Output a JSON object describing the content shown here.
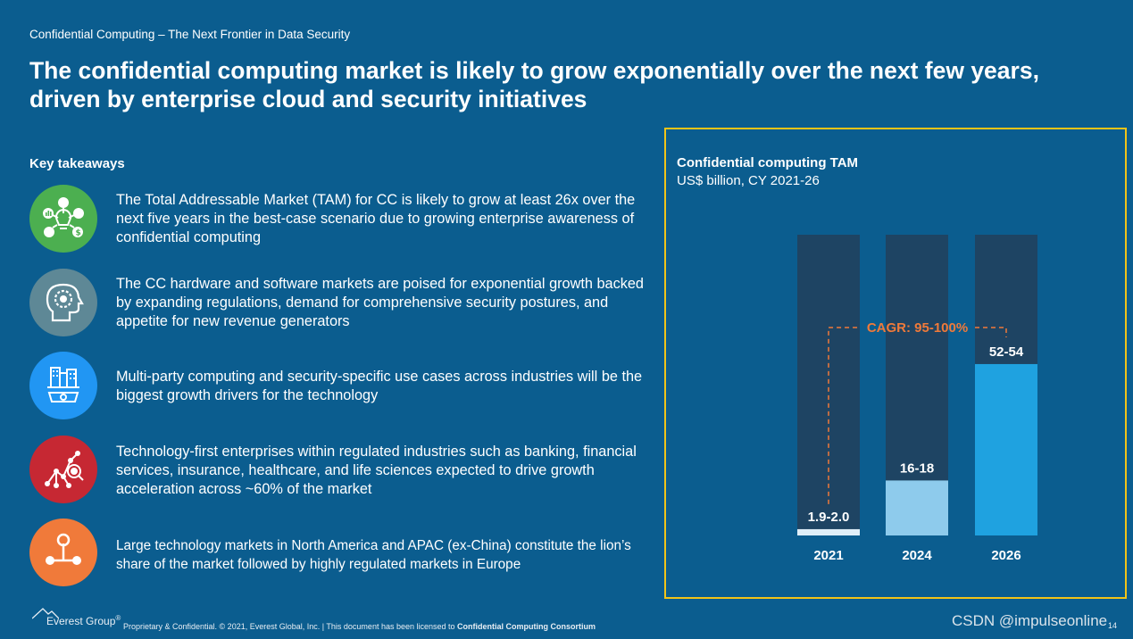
{
  "subtitle": "Confidential Computing – The Next Frontier in Data Security",
  "headline": "The confidential computing market is likely to grow exponentially over the next few years, driven by enterprise cloud and security initiatives",
  "key_takeaways": {
    "heading": "Key takeaways",
    "items": [
      {
        "icon": "growth-bulb-icon",
        "color": "#4caf50",
        "text": "The Total Addressable Market (TAM) for CC is likely to grow at least 26x over the next five years in the best-case scenario due to growing enterprise awareness of confidential computing"
      },
      {
        "icon": "brain-gear-icon",
        "color": "#5e8896",
        "text": "The CC hardware and software markets are poised for exponential growth backed by expanding regulations, demand for comprehensive security postures, and appetite for new revenue generators"
      },
      {
        "icon": "industry-gear-icon",
        "color": "#2196f3",
        "text": "Multi-party computing and security-specific use cases across industries will be the biggest growth drivers for the technology"
      },
      {
        "icon": "network-search-icon",
        "color": "#c62833",
        "text": "Technology-first enterprises within regulated industries such as banking, financial services, insurance, healthcare, and life sciences expected to drive growth acceleration across ~60% of the market"
      },
      {
        "icon": "hierarchy-network-icon",
        "color": "#f07a3a",
        "text": "Large technology markets in North America and APAC (ex-China) constitute the lion’s share of the market followed by highly regulated markets in Europe"
      }
    ]
  },
  "chart_panel": {
    "title": "Confidential computing TAM",
    "subtitle": "US$ billion, CY 2021-26"
  },
  "chart_data": {
    "type": "bar",
    "title": "Confidential computing TAM",
    "subtitle": "US$ billion, CY 2021-26",
    "categories": [
      "2021",
      "2024",
      "2026"
    ],
    "values": [
      1.95,
      17,
      53
    ],
    "value_labels": [
      "1.9-2.0",
      "16-18",
      "52-54"
    ],
    "ylim": [
      0,
      93
    ],
    "bar_colors": [
      "#dfeef8",
      "#8ecbec",
      "#1fa2e0"
    ],
    "background_bar_color": "#1e4463",
    "annotation": {
      "text": "CAGR: 95-100%",
      "from": "2021",
      "to": "2026",
      "color": "#f07a3a"
    }
  },
  "footer": {
    "logo_text": "Everest Group",
    "logo_mark": "®",
    "text_prefix": "Proprietary & Confidential. © 2021, Everest Global, Inc. | This document has been licensed to ",
    "text_bold": "Confidential Computing Consortium",
    "watermark": "CSDN @impulseonline",
    "page_number": "14"
  }
}
